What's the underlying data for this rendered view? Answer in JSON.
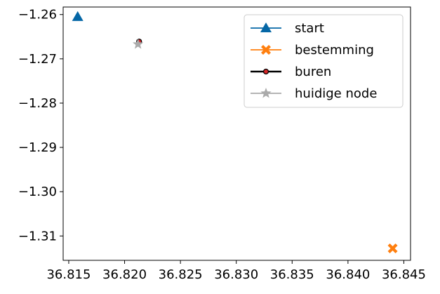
{
  "chart_data": {
    "type": "scatter",
    "title": "",
    "xlabel": "",
    "ylabel": "",
    "xlim": [
      36.8145,
      36.8456
    ],
    "ylim": [
      -1.3155,
      -1.2583
    ],
    "x_ticks": [
      36.815,
      36.82,
      36.825,
      36.83,
      36.835,
      36.84,
      36.845
    ],
    "x_tick_labels": [
      "36.815",
      "36.820",
      "36.825",
      "36.830",
      "36.835",
      "36.840",
      "36.845"
    ],
    "y_ticks": [
      -1.26,
      -1.27,
      -1.28,
      -1.29,
      -1.3,
      -1.31
    ],
    "y_tick_labels": [
      "−1.26",
      "−1.27",
      "−1.28",
      "−1.29",
      "−1.30",
      "−1.31"
    ],
    "grid": false,
    "legend_position": "top-right",
    "series": [
      {
        "name": "start",
        "marker": "triangle",
        "color": "#0567a6",
        "points": [
          {
            "x": 36.8158,
            "y": -1.2605
          }
        ]
      },
      {
        "name": "bestemming",
        "marker": "x",
        "color": "#ff7f0e",
        "points": [
          {
            "x": 36.844,
            "y": -1.3128
          }
        ]
      },
      {
        "name": "buren",
        "marker": "circle",
        "color": "#000000",
        "fill": "#d62728",
        "points": [
          {
            "x": 36.8213,
            "y": -1.2661
          }
        ]
      },
      {
        "name": "huidige node",
        "marker": "star",
        "color": "#aaaaaa",
        "points": [
          {
            "x": 36.8212,
            "y": -1.2667
          }
        ]
      }
    ]
  }
}
